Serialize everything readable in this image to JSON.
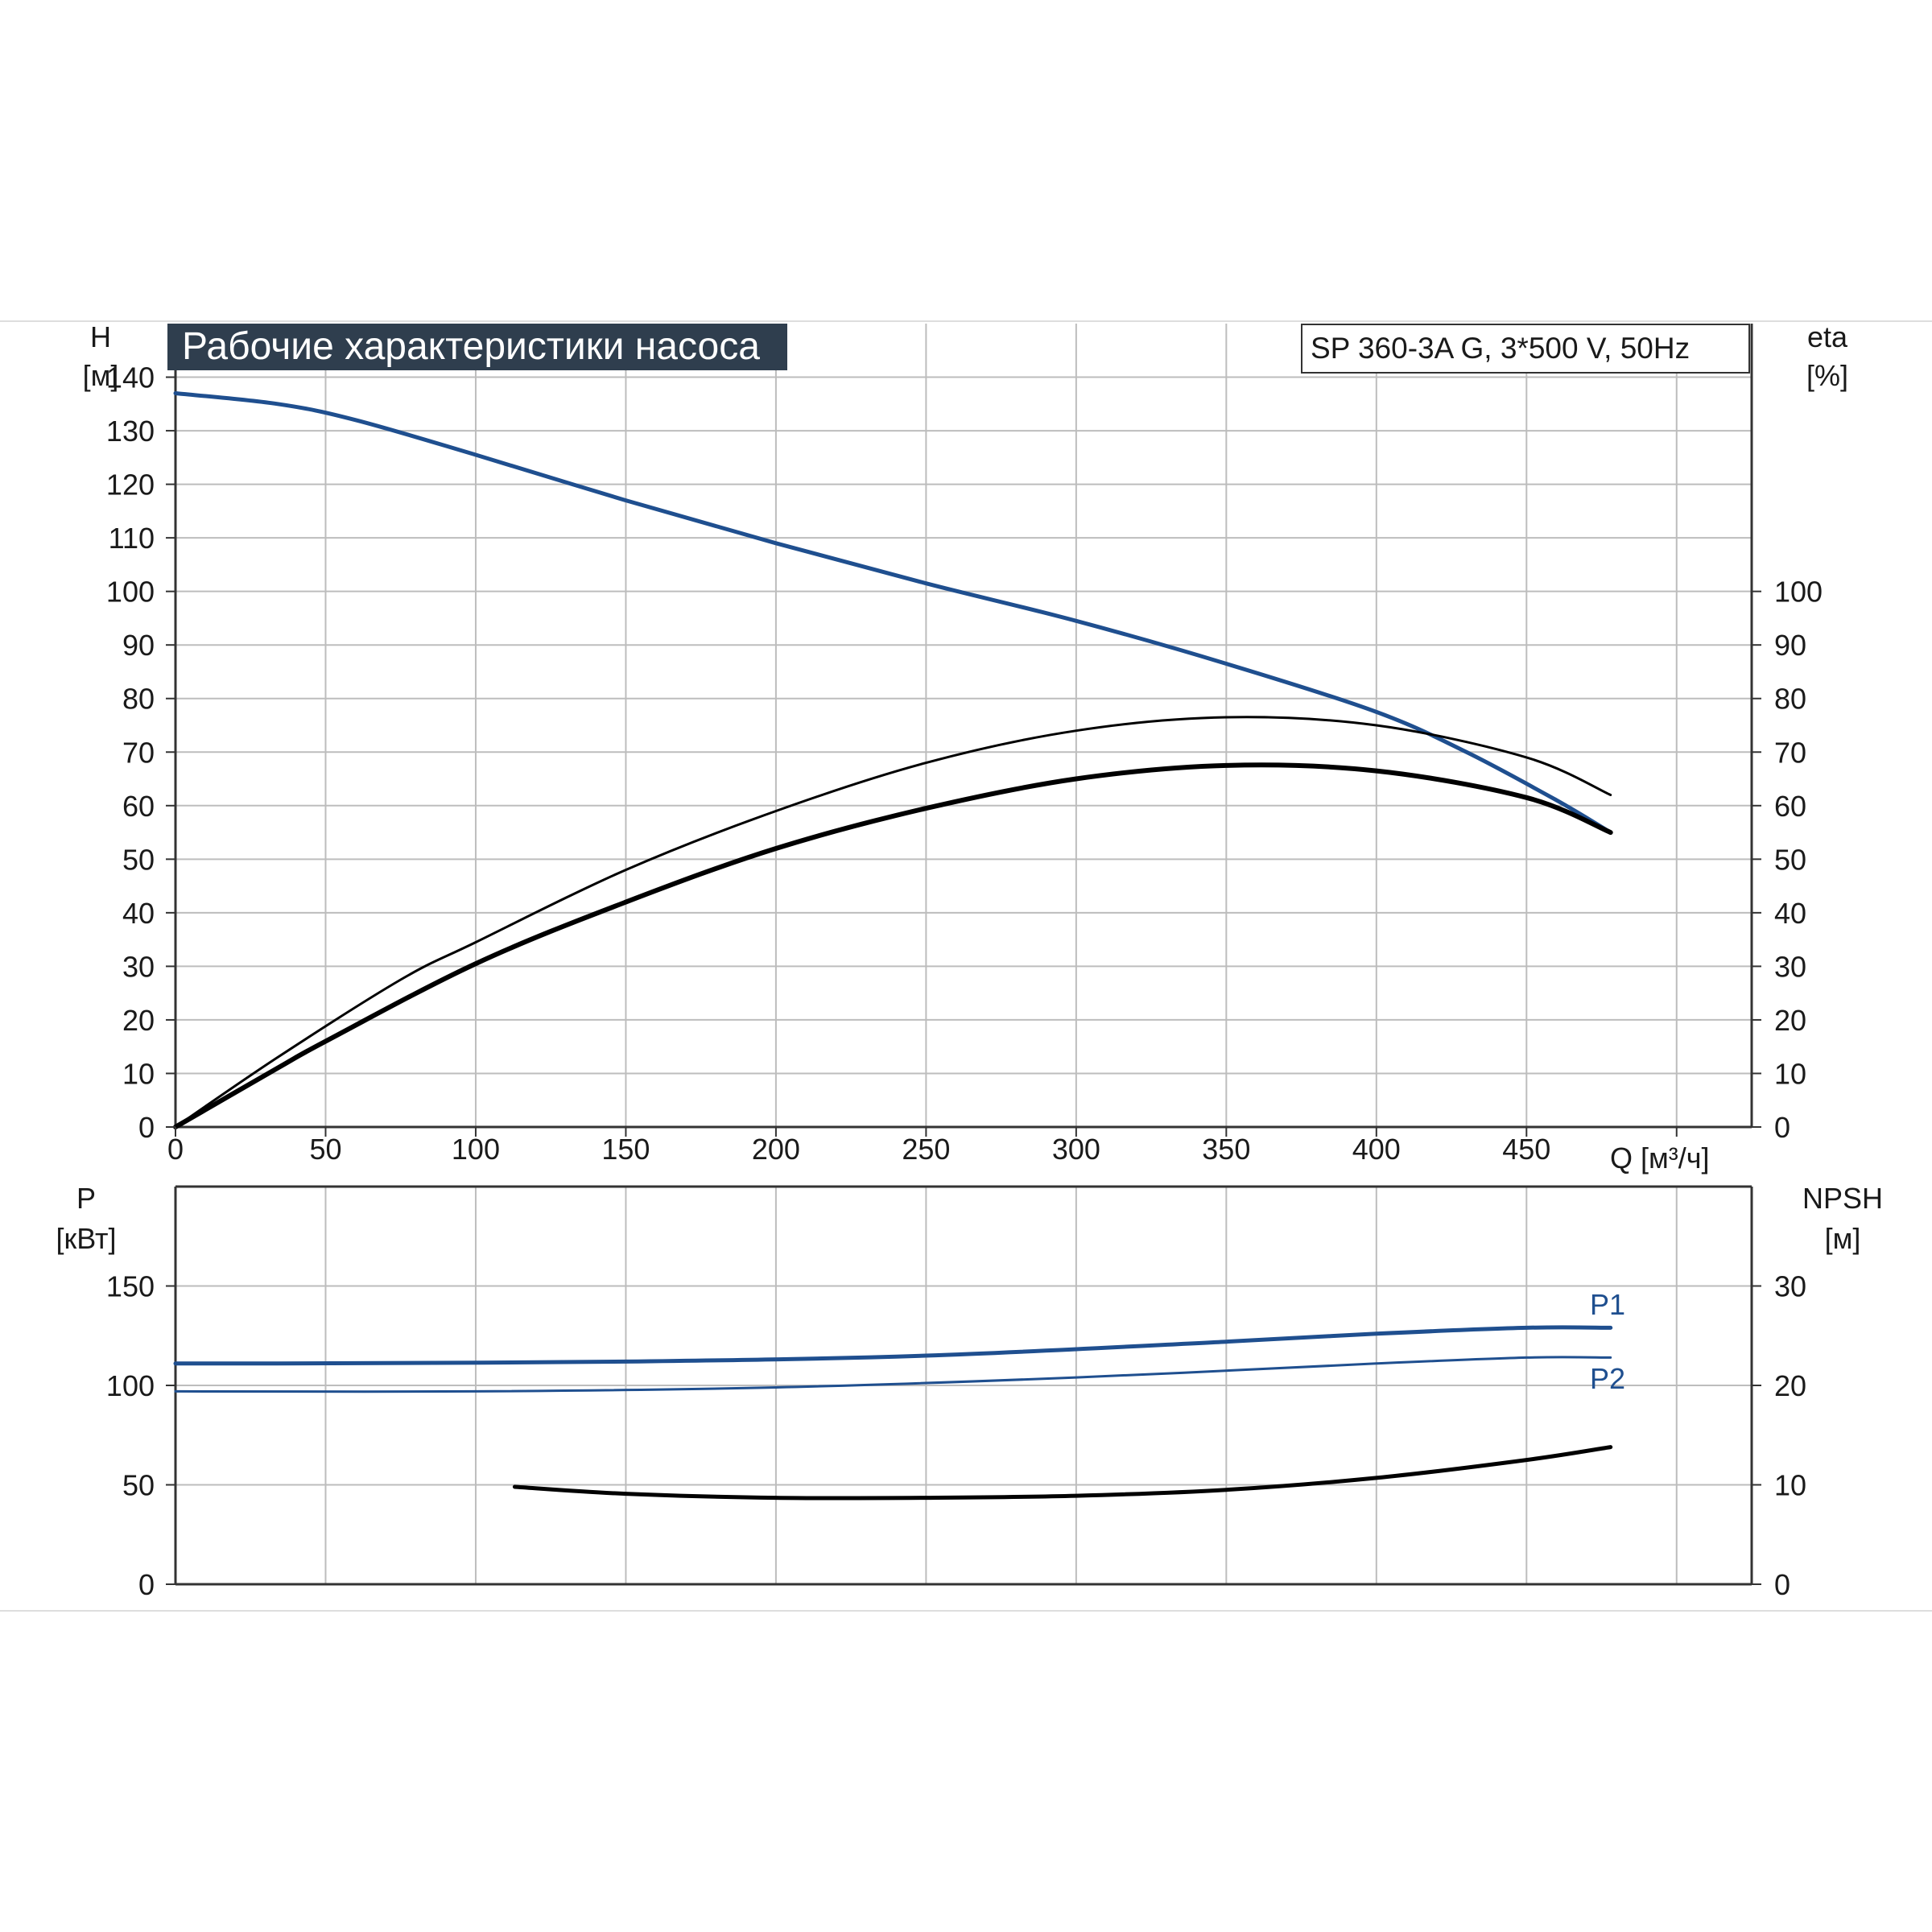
{
  "title": "Рабочие характеристики насоса",
  "model": "SP 360-3A G, 3*500 V, 50Hz",
  "colors": {
    "blue": "#1f4f8f",
    "black": "#000000",
    "grid": "#bdbdbd",
    "title_bg": "#2f3e4e"
  },
  "top_chart": {
    "left_axis": {
      "symbol": "H",
      "unit": "[м]"
    },
    "right_axis": {
      "symbol": "eta",
      "unit": "[%]"
    },
    "x_axis": {
      "label": "Q [м³/ч]"
    }
  },
  "bottom_chart": {
    "left_axis": {
      "symbol": "P",
      "unit": "[кВт]"
    },
    "right_axis": {
      "symbol": "NPSH",
      "unit": "[м]"
    }
  },
  "chart_data": [
    {
      "type": "line",
      "grid": true,
      "x_ticks": [
        0,
        50,
        100,
        150,
        200,
        250,
        300,
        350,
        400,
        450
      ],
      "xlim": [
        0,
        525
      ],
      "left_ticks": [
        0,
        10,
        20,
        30,
        40,
        50,
        60,
        70,
        80,
        90,
        100,
        110,
        120,
        130,
        140
      ],
      "ylim_left": [
        0,
        150
      ],
      "right_ticks": [
        0,
        10,
        20,
        30,
        40,
        50,
        60,
        70,
        80,
        90,
        100
      ],
      "ylim_right": [
        0,
        150
      ],
      "series": [
        {
          "axis": "left",
          "color": "#1f4f8f",
          "width": 5,
          "x": [
            0,
            34,
            60,
            100,
            150,
            200,
            250,
            300,
            350,
            400,
            430,
            460,
            478
          ],
          "y": [
            137,
            135,
            132,
            125.5,
            117,
            109,
            101.5,
            94.5,
            86.5,
            77.5,
            70,
            61,
            55
          ]
        },
        {
          "axis": "right",
          "color": "#000000",
          "width": 3,
          "x": [
            0,
            34,
            75,
            100,
            150,
            200,
            250,
            300,
            350,
            400,
            450,
            478
          ],
          "y": [
            0,
            13,
            27.5,
            34.5,
            48,
            59,
            68,
            74,
            76.5,
            75,
            69,
            62
          ]
        },
        {
          "axis": "right",
          "color": "#000000",
          "width": 6,
          "x": [
            0,
            34,
            50,
            100,
            150,
            200,
            250,
            300,
            350,
            400,
            450,
            478
          ],
          "y": [
            0,
            11,
            16,
            30.5,
            42,
            52,
            59.5,
            65,
            67.5,
            66.5,
            61.5,
            55
          ]
        }
      ]
    },
    {
      "type": "line",
      "grid": true,
      "xlim": [
        0,
        525
      ],
      "left_ticks": [
        0,
        50,
        100,
        150
      ],
      "ylim_left": [
        0,
        200
      ],
      "right_ticks": [
        0,
        10,
        20,
        30
      ],
      "ylim_right": [
        0,
        40
      ],
      "series": [
        {
          "name": "P1",
          "axis": "left",
          "color": "#1f4f8f",
          "width": 5,
          "x": [
            0,
            34,
            150,
            250,
            350,
            400,
            450,
            478
          ],
          "y": [
            111,
            111,
            112,
            115,
            122,
            126,
            129,
            129
          ]
        },
        {
          "name": "P2",
          "axis": "left",
          "color": "#1f4f8f",
          "width": 3,
          "x": [
            0,
            100,
            200,
            300,
            400,
            450,
            478
          ],
          "y": [
            97,
            97,
            99,
            104,
            111,
            114,
            114
          ]
        },
        {
          "axis": "right",
          "color": "#000000",
          "width": 5,
          "x": [
            113,
            150,
            200,
            250,
            300,
            350,
            400,
            450,
            478
          ],
          "y": [
            9.8,
            9.1,
            8.7,
            8.7,
            8.9,
            9.5,
            10.7,
            12.5,
            13.8
          ]
        }
      ]
    }
  ]
}
